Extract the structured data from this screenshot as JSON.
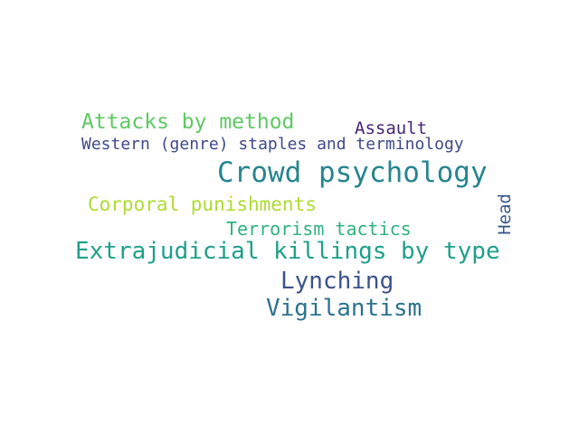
{
  "word_cloud": {
    "words": [
      {
        "text": "Attacks by method",
        "color": "#5ec962"
      },
      {
        "text": "Assault",
        "color": "#482475"
      },
      {
        "text": "Western (genre) staples and terminology",
        "color": "#3e4989"
      },
      {
        "text": "Crowd psychology",
        "color": "#25858e"
      },
      {
        "text": "Corporal punishments",
        "color": "#addc30"
      },
      {
        "text": "Head",
        "color": "#38598c",
        "orientation": "vertical"
      },
      {
        "text": "Terrorism tactics",
        "color": "#2db27d"
      },
      {
        "text": "Extrajudicial killings by type",
        "color": "#1fa088"
      },
      {
        "text": "Lynching",
        "color": "#3b528b"
      },
      {
        "text": "Vigilantism",
        "color": "#2c728e"
      }
    ]
  }
}
